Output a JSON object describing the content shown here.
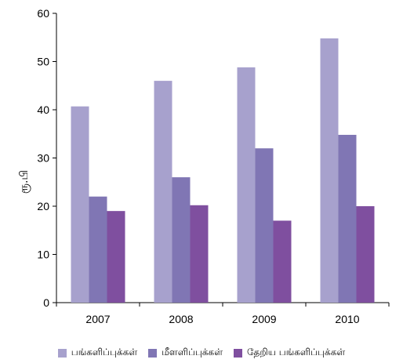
{
  "chart_data": {
    "type": "bar",
    "categories": [
      "2007",
      "2008",
      "2009",
      "2010"
    ],
    "series": [
      {
        "name": "பங்களிப்புக்கள்",
        "values": [
          40.7,
          46.0,
          48.8,
          54.8
        ],
        "color": "#a7a1cd"
      },
      {
        "name": "மீளளிப்புக்கள்",
        "values": [
          22.0,
          26.0,
          32.0,
          34.8
        ],
        "color": "#8076b4"
      },
      {
        "name": "தேறிய பங்களிப்புக்கள்",
        "values": [
          19.0,
          20.2,
          17.0,
          20.0
        ],
        "color": "#7f4f9f"
      }
    ],
    "title": "",
    "xlabel": "",
    "ylabel": "ரூ.பி",
    "ylim": [
      0,
      60
    ],
    "yticks": [
      0,
      10,
      20,
      30,
      40,
      50,
      60
    ],
    "grid": false,
    "legend_position": "bottom"
  }
}
